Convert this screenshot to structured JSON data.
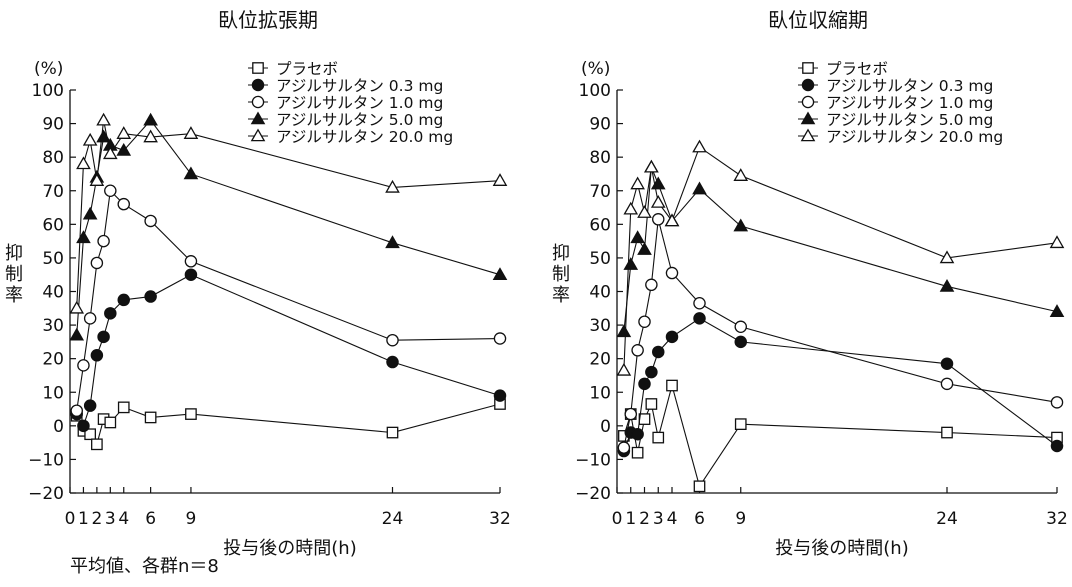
{
  "footnote": "平均値、各群n＝8",
  "marker_by_series": [
    "open-square",
    "filled-circle",
    "open-circle",
    "filled-triangle",
    "open-triangle"
  ],
  "chart_data": [
    {
      "type": "line",
      "title": "臥位拡張期",
      "xlabel": "投与後の時間(h)",
      "ylabel": "抑制率",
      "yunit": "(%)",
      "xlim": [
        0,
        32
      ],
      "ylim": [
        -20,
        100
      ],
      "xticks": [
        0,
        1,
        2,
        3,
        4,
        6,
        9,
        24,
        32
      ],
      "yticks": [
        -20,
        -10,
        0,
        10,
        20,
        30,
        40,
        50,
        60,
        70,
        80,
        90,
        100
      ],
      "grid": false,
      "legend_position": "top-right",
      "series": [
        {
          "name": "プラセボ",
          "x": [
            0.5,
            1,
            1.5,
            2,
            2.5,
            3,
            4,
            6,
            9,
            24,
            32
          ],
          "y": [
            3,
            -1.5,
            -2.5,
            -5.5,
            2,
            1,
            5.5,
            2.5,
            3.5,
            -2,
            6.5
          ]
        },
        {
          "name": "アジルサルタン 0.3 mg",
          "x": [
            0.5,
            1,
            1.5,
            2,
            2.5,
            3,
            4,
            6,
            9,
            24,
            32
          ],
          "y": [
            3.5,
            0,
            6,
            21,
            26.5,
            33.5,
            37.5,
            38.5,
            45,
            19,
            9
          ]
        },
        {
          "name": "アジルサルタン 1.0 mg",
          "x": [
            0.5,
            1,
            1.5,
            2,
            2.5,
            3,
            4,
            6,
            9,
            24,
            32
          ],
          "y": [
            4.5,
            18,
            32,
            48.5,
            55,
            70,
            66,
            61,
            49,
            25.5,
            26
          ]
        },
        {
          "name": "アジルサルタン 5.0 mg",
          "x": [
            0.5,
            1,
            1.5,
            2,
            2.5,
            3,
            4,
            6,
            9,
            24,
            32
          ],
          "y": [
            27,
            56,
            63,
            74,
            86,
            83.5,
            82,
            91,
            75,
            54.5,
            45
          ]
        },
        {
          "name": "アジルサルタン 20.0 mg",
          "x": [
            0.5,
            1,
            1.5,
            2,
            2.5,
            3,
            4,
            6,
            9,
            24,
            32
          ],
          "y": [
            35,
            78,
            85,
            73,
            91,
            81,
            87,
            86,
            87,
            71,
            73
          ]
        }
      ]
    },
    {
      "type": "line",
      "title": "臥位収縮期",
      "xlabel": "投与後の時間(h)",
      "ylabel": "抑制率",
      "yunit": "(%)",
      "xlim": [
        0,
        32
      ],
      "ylim": [
        -20,
        100
      ],
      "xticks": [
        0,
        1,
        2,
        3,
        4,
        6,
        9,
        24,
        32
      ],
      "yticks": [
        -20,
        -10,
        0,
        10,
        20,
        30,
        40,
        50,
        60,
        70,
        80,
        90,
        100
      ],
      "grid": false,
      "legend_position": "top-right",
      "series": [
        {
          "name": "プラセボ",
          "x": [
            0.5,
            1,
            1.5,
            2,
            2.5,
            3,
            4,
            6,
            9,
            24,
            32
          ],
          "y": [
            -3,
            3.5,
            -8,
            2,
            6.5,
            -3.5,
            12,
            -18,
            0.5,
            -2,
            -3.5
          ]
        },
        {
          "name": "アジルサルタン 0.3 mg",
          "x": [
            0.5,
            1,
            1.5,
            2,
            2.5,
            3,
            4,
            6,
            9,
            24,
            32
          ],
          "y": [
            -7.5,
            -2,
            -2.5,
            12.5,
            16,
            22,
            26.5,
            32,
            25,
            18.5,
            -6
          ]
        },
        {
          "name": "アジルサルタン 1.0 mg",
          "x": [
            0.5,
            1,
            1.5,
            2,
            2.5,
            3,
            4,
            6,
            9,
            24,
            32
          ],
          "y": [
            -6.5,
            3.5,
            22.5,
            31,
            42,
            61.5,
            45.5,
            36.5,
            29.5,
            12.5,
            7
          ]
        },
        {
          "name": "アジルサルタン 5.0 mg",
          "x": [
            0.5,
            1,
            1.5,
            2,
            2.5,
            3,
            4,
            6,
            9,
            24,
            32
          ],
          "y": [
            28,
            48,
            56,
            52.5,
            77,
            72,
            61,
            70.5,
            59.5,
            41.5,
            34
          ]
        },
        {
          "name": "アジルサルタン 20.0 mg",
          "x": [
            0.5,
            1,
            1.5,
            2,
            2.5,
            3,
            4,
            6,
            9,
            24,
            32
          ],
          "y": [
            16.5,
            64.5,
            72,
            63.5,
            77,
            66.5,
            61,
            83,
            74.5,
            50,
            54.5
          ]
        }
      ]
    }
  ]
}
